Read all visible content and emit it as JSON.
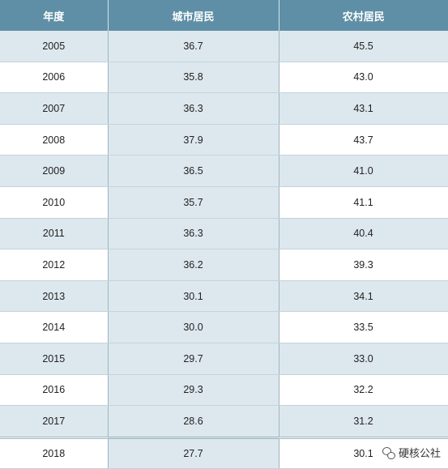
{
  "table": {
    "headers": [
      "年度",
      "城市居民",
      "农村居民"
    ],
    "rows": [
      [
        "2005",
        "36.7",
        "45.5"
      ],
      [
        "2006",
        "35.8",
        "43.0"
      ],
      [
        "2007",
        "36.3",
        "43.1"
      ],
      [
        "2008",
        "37.9",
        "43.7"
      ],
      [
        "2009",
        "36.5",
        "41.0"
      ],
      [
        "2010",
        "35.7",
        "41.1"
      ],
      [
        "2011",
        "36.3",
        "40.4"
      ],
      [
        "2012",
        "36.2",
        "39.3"
      ],
      [
        "2013",
        "30.1",
        "34.1"
      ],
      [
        "2014",
        "30.0",
        "33.5"
      ],
      [
        "2015",
        "29.7",
        "33.0"
      ],
      [
        "2016",
        "29.3",
        "32.2"
      ],
      [
        "2017",
        "28.6",
        "31.2"
      ],
      [
        "2018",
        "27.7",
        "30.1"
      ]
    ]
  },
  "watermark": {
    "icon": "wechat-icon",
    "text": "硬核公社"
  }
}
